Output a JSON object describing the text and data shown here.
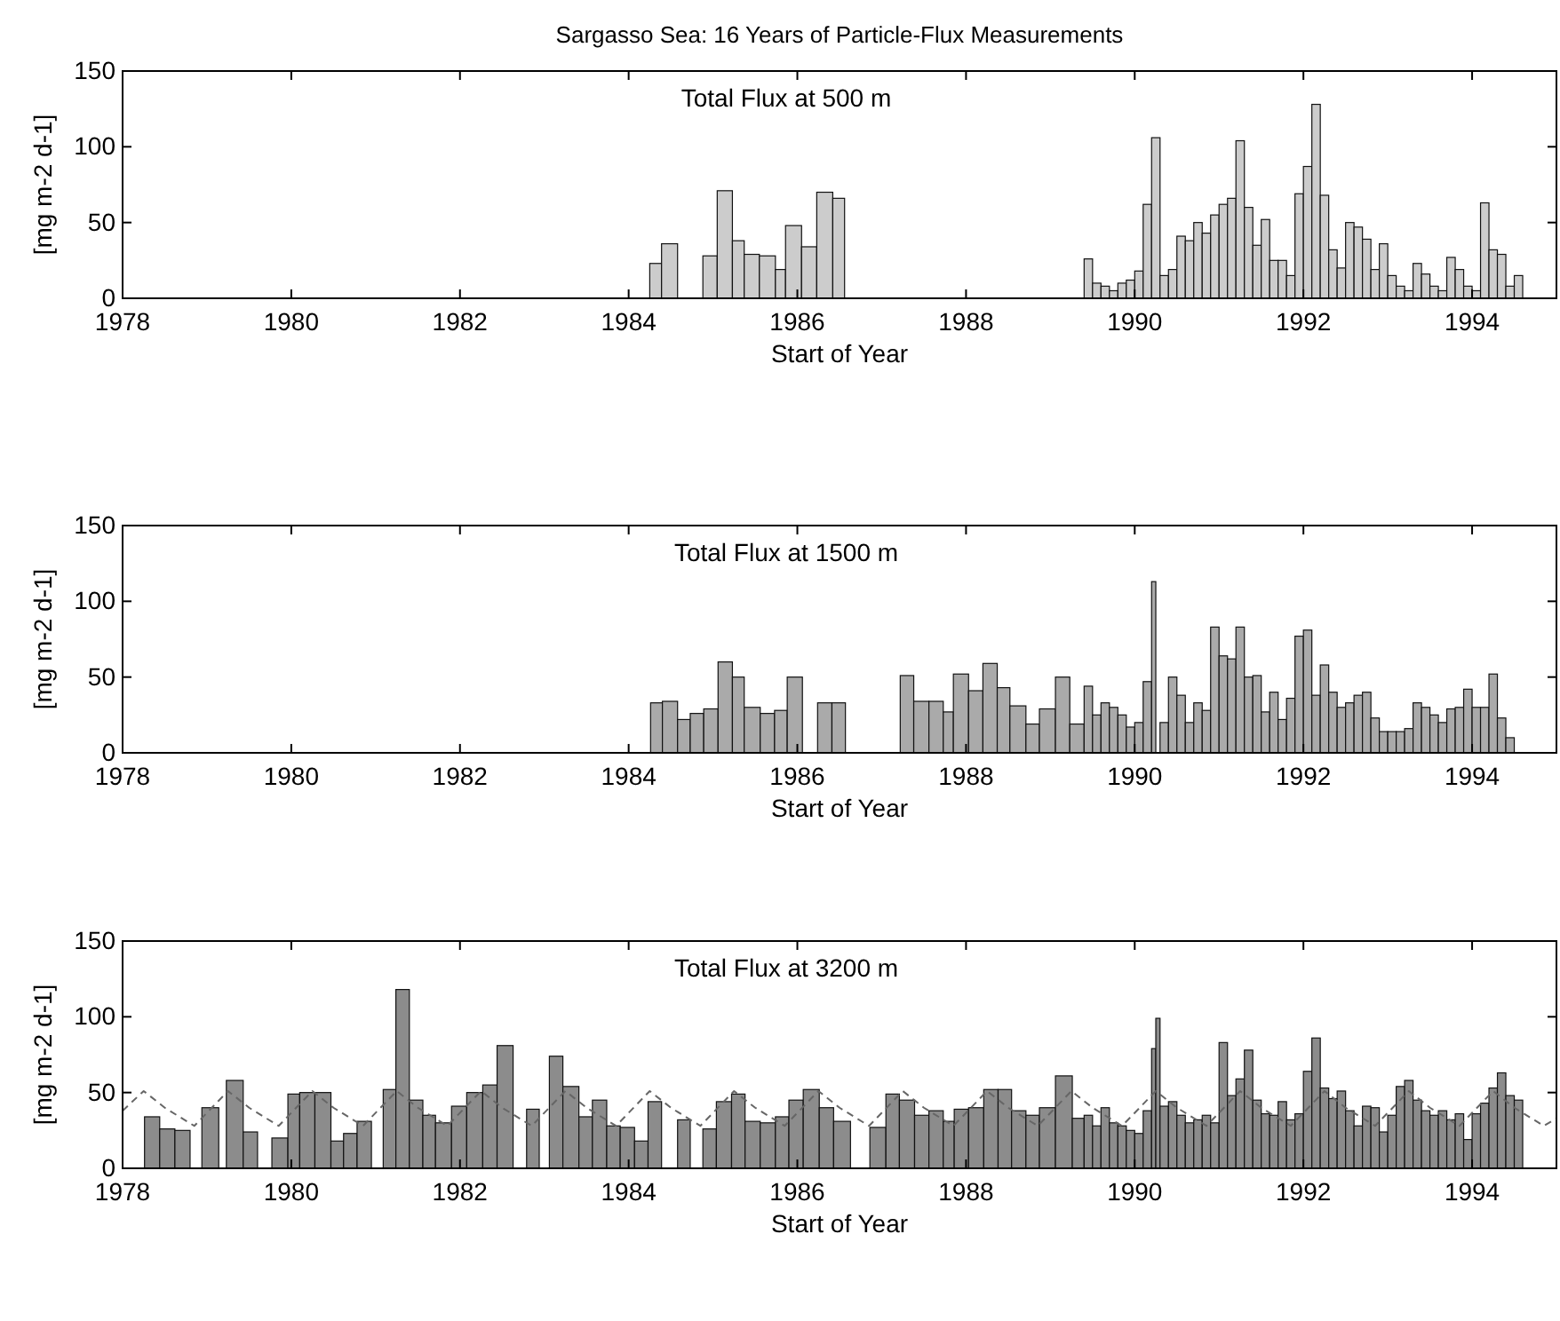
{
  "chart_data": [
    {
      "type": "histogram",
      "title": "Sargasso Sea: 16 Years of Particle-Flux Measurements",
      "annotations": [
        "Total Flux at 500 m"
      ],
      "xlabel": "Start of Year",
      "ylabel": "[mg m-2 d-1]",
      "xlim": [
        1978,
        1995
      ],
      "ylim": [
        0,
        150
      ],
      "xticks": [
        1978,
        1980,
        1982,
        1984,
        1986,
        1988,
        1990,
        1992,
        1994
      ],
      "yticks": [
        0,
        50,
        100,
        150
      ],
      "color": "#cccccc",
      "bins": [
        1984.25,
        1984.39,
        1984.58,
        1984.88,
        1985.05,
        1985.23,
        1985.37,
        1985.55,
        1985.74,
        1985.86,
        1986.05,
        1986.23,
        1986.42,
        1986.56,
        1989.4,
        1989.5,
        1989.6,
        1989.7,
        1989.8,
        1989.9,
        1990.0,
        1990.1,
        1990.2,
        1990.3,
        1990.4,
        1990.5,
        1990.6,
        1990.7,
        1990.8,
        1990.9,
        1991.0,
        1991.1,
        1991.2,
        1991.3,
        1991.4,
        1991.5,
        1991.6,
        1991.7,
        1991.8,
        1991.9,
        1992.0,
        1992.1,
        1992.2,
        1992.3,
        1992.4,
        1992.5,
        1992.6,
        1992.7,
        1992.8,
        1992.9,
        1993.0,
        1993.1,
        1993.2,
        1993.3,
        1993.4,
        1993.5,
        1993.6,
        1993.7,
        1993.8,
        1993.9,
        1994.0,
        1994.1,
        1994.2,
        1994.3,
        1994.4,
        1994.5,
        1994.6
      ],
      "values": [
        23,
        36,
        null,
        28,
        71,
        38,
        29,
        28,
        19,
        48,
        34,
        70,
        66,
        null,
        26,
        10,
        8,
        5,
        10,
        12,
        18,
        62,
        106,
        15,
        19,
        41,
        38,
        50,
        43,
        55,
        62,
        66,
        104,
        60,
        35,
        52,
        25,
        25,
        15,
        69,
        87,
        128,
        68,
        32,
        20,
        50,
        47,
        39,
        19,
        36,
        15,
        8,
        5,
        23,
        16,
        8,
        5,
        27,
        19,
        8,
        5,
        63,
        32,
        29,
        8,
        15
      ]
    },
    {
      "type": "histogram",
      "annotations": [
        "Total Flux at 1500 m"
      ],
      "xlabel": "Start of Year",
      "ylabel": "[mg m-2 d-1]",
      "xlim": [
        1978,
        1995
      ],
      "ylim": [
        0,
        150
      ],
      "xticks": [
        1978,
        1980,
        1982,
        1984,
        1986,
        1988,
        1990,
        1992,
        1994
      ],
      "yticks": [
        0,
        50,
        100,
        150
      ],
      "color": "#aaaaaa",
      "bins": [
        1984.26,
        1984.4,
        1984.58,
        1984.73,
        1984.89,
        1985.06,
        1985.23,
        1985.37,
        1985.56,
        1985.73,
        1985.88,
        1986.06,
        1986.24,
        1986.41,
        1986.57,
        1987.22,
        1987.38,
        1987.56,
        1987.73,
        1987.85,
        1988.03,
        1988.2,
        1988.37,
        1988.52,
        1988.71,
        1988.87,
        1989.06,
        1989.23,
        1989.4,
        1989.5,
        1989.6,
        1989.7,
        1989.8,
        1989.9,
        1990.0,
        1990.1,
        1990.2,
        1990.25,
        1990.3,
        1990.4,
        1990.5,
        1990.6,
        1990.7,
        1990.8,
        1990.9,
        1991.0,
        1991.1,
        1991.2,
        1991.3,
        1991.4,
        1991.5,
        1991.6,
        1991.7,
        1991.8,
        1991.9,
        1992.0,
        1992.1,
        1992.2,
        1992.3,
        1992.4,
        1992.5,
        1992.6,
        1992.7,
        1992.8,
        1992.9,
        1993.0,
        1993.1,
        1993.2,
        1993.3,
        1993.4,
        1993.5,
        1993.6,
        1993.7,
        1993.8,
        1993.9,
        1994.0,
        1994.1,
        1994.2,
        1994.3,
        1994.4,
        1994.5
      ],
      "values": [
        33,
        34,
        22,
        26,
        29,
        60,
        50,
        30,
        26,
        28,
        50,
        null,
        33,
        33,
        null,
        51,
        34,
        34,
        27,
        52,
        41,
        59,
        43,
        31,
        19,
        29,
        50,
        19,
        44,
        25,
        33,
        30,
        25,
        17,
        20,
        47,
        113,
        null,
        20,
        50,
        38,
        20,
        33,
        28,
        83,
        64,
        62,
        83,
        50,
        51,
        27,
        40,
        22,
        36,
        77,
        81,
        38,
        58,
        40,
        30,
        33,
        38,
        40,
        23,
        14,
        14,
        14,
        16,
        33,
        30,
        25,
        20,
        29,
        30,
        42,
        30,
        30,
        52,
        23,
        10
      ]
    },
    {
      "type": "histogram",
      "annotations": [
        "Total Flux at 3200 m"
      ],
      "xlabel": "Start of Year",
      "ylabel": "[mg m-2 d-1]",
      "xlim": [
        1978,
        1995
      ],
      "ylim": [
        0,
        150
      ],
      "xticks": [
        1978,
        1980,
        1982,
        1984,
        1986,
        1988,
        1990,
        1992,
        1994
      ],
      "yticks": [
        0,
        50,
        100,
        150
      ],
      "series": [
        {
          "type": "histogram",
          "color": "#8c8c8c",
          "bins": [
            1978.26,
            1978.44,
            1978.62,
            1978.8,
            1978.94,
            1979.14,
            1979.23,
            1979.43,
            1979.6,
            1979.77,
            1979.96,
            1980.1,
            1980.28,
            1980.47,
            1980.62,
            1980.78,
            1980.95,
            1981.09,
            1981.24,
            1981.4,
            1981.56,
            1981.71,
            1981.9,
            1982.08,
            1982.27,
            1982.44,
            1982.63,
            1982.79,
            1982.94,
            1983.06,
            1983.22,
            1983.41,
            1983.57,
            1983.74,
            1983.9,
            1984.07,
            1984.23,
            1984.39,
            1984.58,
            1984.73,
            1984.88,
            1985.04,
            1985.22,
            1985.38,
            1985.56,
            1985.74,
            1985.9,
            1986.07,
            1986.26,
            1986.43,
            1986.63,
            1986.86,
            1987.05,
            1987.21,
            1987.39,
            1987.56,
            1987.73,
            1987.86,
            1988.03,
            1988.21,
            1988.38,
            1988.54,
            1988.71,
            1988.87,
            1989.06,
            1989.26,
            1989.4,
            1989.5,
            1989.6,
            1989.7,
            1989.8,
            1989.9,
            1990.0,
            1990.1,
            1990.2,
            1990.25,
            1990.3,
            1990.4,
            1990.5,
            1990.6,
            1990.7,
            1990.8,
            1990.9,
            1991.0,
            1991.1,
            1991.2,
            1991.3,
            1991.4,
            1991.5,
            1991.6,
            1991.7,
            1991.8,
            1991.9,
            1992.0,
            1992.1,
            1992.2,
            1992.3,
            1992.4,
            1992.5,
            1992.6,
            1992.7,
            1992.8,
            1992.9,
            1993.0,
            1993.1,
            1993.2,
            1993.3,
            1993.4,
            1993.5,
            1993.6,
            1993.7,
            1993.8,
            1993.9,
            1994.0,
            1994.1,
            1994.2,
            1994.3,
            1994.4,
            1994.5,
            1994.6
          ],
          "values": [
            34,
            26,
            25,
            null,
            40,
            null,
            58,
            24,
            null,
            20,
            49,
            50,
            50,
            18,
            23,
            31,
            null,
            52,
            118,
            45,
            35,
            30,
            41,
            50,
            55,
            81,
            null,
            39,
            null,
            74,
            54,
            34,
            45,
            28,
            27,
            18,
            44,
            null,
            32,
            null,
            26,
            44,
            49,
            31,
            30,
            34,
            45,
            52,
            40,
            31,
            null,
            27,
            49,
            45,
            35,
            38,
            31,
            39,
            40,
            52,
            52,
            38,
            35,
            40,
            61,
            33,
            35,
            28,
            40,
            30,
            28,
            25,
            23,
            38,
            79,
            99,
            41,
            44,
            35,
            30,
            32,
            35,
            30,
            83,
            48,
            59,
            78,
            45,
            36,
            35,
            44,
            32,
            36,
            64,
            86,
            53,
            46,
            51,
            38,
            28,
            41,
            40,
            24,
            35,
            54,
            58,
            45,
            38,
            35,
            38,
            32,
            36,
            19,
            36,
            43,
            53,
            63,
            48,
            45
          ]
        },
        {
          "type": "line",
          "color": "#666666",
          "line_style": "dashed",
          "x": [
            1978,
            1978.25,
            1978.5,
            1978.85,
            1979.25,
            1979.5,
            1979.85,
            1980.25,
            1980.5,
            1980.85,
            1981.25,
            1981.5,
            1981.85,
            1982.25,
            1982.5,
            1982.85,
            1983.25,
            1983.5,
            1983.85,
            1984.25,
            1984.5,
            1984.85,
            1985.25,
            1985.5,
            1985.85,
            1986.25,
            1986.5,
            1986.85,
            1987.25,
            1987.5,
            1987.85,
            1988.25,
            1988.5,
            1988.85,
            1989.25,
            1989.5,
            1989.85,
            1990.25,
            1990.5,
            1990.85,
            1991.25,
            1991.5,
            1991.85,
            1992.25,
            1992.5,
            1992.85,
            1993.25,
            1993.5,
            1993.85,
            1994.25,
            1994.5,
            1994.85,
            1995
          ],
          "values": [
            38,
            51,
            40,
            28,
            51,
            40,
            28,
            51,
            40,
            28,
            51,
            40,
            28,
            51,
            40,
            28,
            51,
            40,
            28,
            51,
            40,
            28,
            51,
            40,
            28,
            51,
            40,
            28,
            51,
            40,
            28,
            51,
            40,
            28,
            51,
            40,
            28,
            51,
            40,
            28,
            51,
            40,
            28,
            51,
            40,
            28,
            51,
            40,
            28,
            51,
            40,
            28,
            33
          ]
        }
      ]
    }
  ]
}
